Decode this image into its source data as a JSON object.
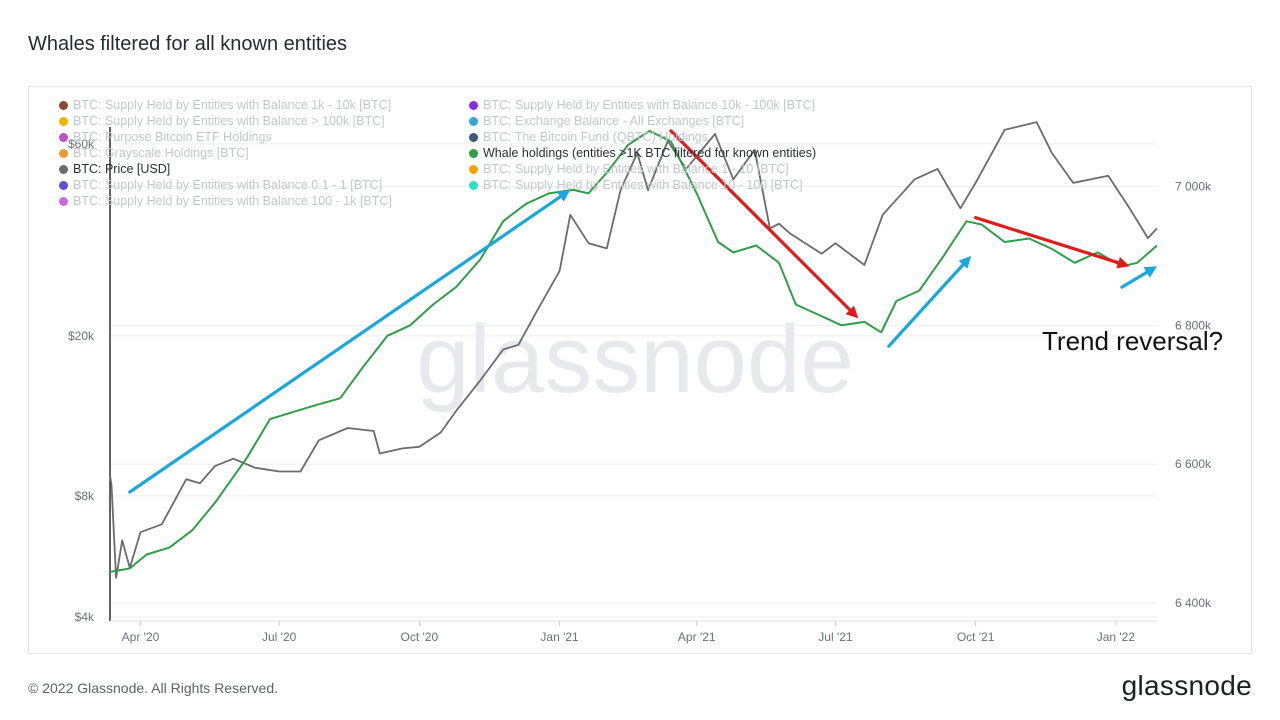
{
  "header": {
    "title": "Whales filtered for all known entities"
  },
  "footer": {
    "copyright": "© 2022 Glassnode. All Rights Reserved.",
    "logo": "glassnode"
  },
  "watermark": "glassnode",
  "annotation": {
    "text": "Trend reversal?"
  },
  "colors": {
    "price": "#6b6b6b",
    "whale": "#2e9e47",
    "arrow_blue": "#1aa6de",
    "arrow_red": "#e01b1b",
    "grid": "#eceef1",
    "axis_text": "#6b7079"
  },
  "legend": {
    "left": [
      {
        "label": "BTC: Supply Held by Entities with Balance 1k - 10k [BTC]",
        "color": "#8b4a2b",
        "active": false
      },
      {
        "label": "BTC: Supply Held by Entities with Balance > 100k [BTC]",
        "color": "#f2b300",
        "active": false
      },
      {
        "label": "BTC: Purpose Bitcoin ETF Holdings",
        "color": "#c04fc7",
        "active": false
      },
      {
        "label": "BTC: Grayscale Holdings [BTC]",
        "color": "#f0982b",
        "active": false
      },
      {
        "label": "BTC: Price [USD]",
        "color": "#6b6b6b",
        "active": true
      },
      {
        "label": "BTC: Supply Held by Entities with Balance 0.1 - 1 [BTC]",
        "color": "#5a4fdb",
        "active": false
      },
      {
        "label": "BTC: Supply Held by Entities with Balance 100 - 1k [BTC]",
        "color": "#c86ad9",
        "active": false
      }
    ],
    "right": [
      {
        "label": "BTC: Supply Held by Entities with Balance 10k - 100k [BTC]",
        "color": "#8a2be2",
        "active": false
      },
      {
        "label": "BTC: Exchange Balance - All Exchanges [BTC]",
        "color": "#33a8d8",
        "active": false
      },
      {
        "label": "BTC: The Bitcoin Fund (QBTC) Holdings",
        "color": "#3b5b7a",
        "active": false
      },
      {
        "label": "Whale holdings (entities >1K BTC filtered for known entities)",
        "color": "#2e9e47",
        "active": true
      },
      {
        "label": "BTC: Supply Held by Entities with Balance 1 - 10 [BTC]",
        "color": "#f2a400",
        "active": false
      },
      {
        "label": "BTC: Supply Held by Entities with Balance 10 - 100 [BTC]",
        "color": "#2be0c8",
        "active": false
      }
    ]
  },
  "chart_data": {
    "type": "line",
    "x_ticks": [
      {
        "date": "2020-04-01",
        "label": "Apr '20"
      },
      {
        "date": "2020-07-01",
        "label": "Jul '20"
      },
      {
        "date": "2020-10-01",
        "label": "Oct '20"
      },
      {
        "date": "2021-01-01",
        "label": "Jan '21"
      },
      {
        "date": "2021-04-01",
        "label": "Apr '21"
      },
      {
        "date": "2021-07-01",
        "label": "Jul '21"
      },
      {
        "date": "2021-10-01",
        "label": "Oct '21"
      },
      {
        "date": "2022-01-01",
        "label": "Jan '22"
      }
    ],
    "x_range": [
      "2020-03-12",
      "2022-01-28"
    ],
    "y_left": {
      "scale": "log",
      "range": [
        4000,
        70000
      ],
      "ticks": [
        {
          "value": 4000,
          "label": "$4k"
        },
        {
          "value": 8000,
          "label": "$8k"
        },
        {
          "value": 20000,
          "label": "$20k"
        },
        {
          "value": 60000,
          "label": "$60k"
        }
      ]
    },
    "y_right": {
      "scale": "linear",
      "range": [
        6380000,
        7100000
      ],
      "ticks": [
        {
          "value": 6400000,
          "label": "6 400k"
        },
        {
          "value": 6600000,
          "label": "6 600k"
        },
        {
          "value": 6800000,
          "label": "6 800k"
        },
        {
          "value": 7000000,
          "label": "7 000k"
        }
      ]
    },
    "series": [
      {
        "name": "BTC: Price [USD]",
        "axis": "left",
        "points": [
          [
            "2020-03-12",
            9000
          ],
          [
            "2020-03-13",
            8500
          ],
          [
            "2020-03-16",
            5000
          ],
          [
            "2020-03-20",
            6200
          ],
          [
            "2020-03-25",
            5300
          ],
          [
            "2020-04-01",
            6500
          ],
          [
            "2020-04-15",
            6800
          ],
          [
            "2020-05-01",
            8800
          ],
          [
            "2020-05-10",
            8600
          ],
          [
            "2020-05-20",
            9500
          ],
          [
            "2020-06-01",
            9900
          ],
          [
            "2020-06-15",
            9400
          ],
          [
            "2020-07-01",
            9200
          ],
          [
            "2020-07-15",
            9200
          ],
          [
            "2020-07-27",
            11000
          ],
          [
            "2020-08-15",
            11800
          ],
          [
            "2020-09-01",
            11600
          ],
          [
            "2020-09-05",
            10200
          ],
          [
            "2020-09-20",
            10500
          ],
          [
            "2020-10-01",
            10600
          ],
          [
            "2020-10-15",
            11500
          ],
          [
            "2020-10-25",
            13000
          ],
          [
            "2020-11-10",
            15500
          ],
          [
            "2020-11-25",
            18500
          ],
          [
            "2020-12-05",
            19000
          ],
          [
            "2020-12-17",
            23000
          ],
          [
            "2021-01-01",
            29000
          ],
          [
            "2021-01-08",
            40000
          ],
          [
            "2021-01-20",
            34000
          ],
          [
            "2021-02-01",
            33000
          ],
          [
            "2021-02-10",
            46000
          ],
          [
            "2021-02-21",
            57000
          ],
          [
            "2021-02-28",
            46000
          ],
          [
            "2021-03-13",
            61000
          ],
          [
            "2021-03-25",
            52000
          ],
          [
            "2021-04-13",
            63500
          ],
          [
            "2021-04-25",
            49000
          ],
          [
            "2021-05-09",
            58000
          ],
          [
            "2021-05-19",
            37000
          ],
          [
            "2021-05-25",
            38000
          ],
          [
            "2021-06-01",
            36000
          ],
          [
            "2021-06-22",
            32000
          ],
          [
            "2021-07-01",
            34000
          ],
          [
            "2021-07-20",
            30000
          ],
          [
            "2021-08-01",
            40000
          ],
          [
            "2021-08-22",
            49000
          ],
          [
            "2021-09-06",
            52000
          ],
          [
            "2021-09-21",
            41500
          ],
          [
            "2021-10-01",
            48000
          ],
          [
            "2021-10-20",
            65000
          ],
          [
            "2021-11-10",
            68000
          ],
          [
            "2021-11-20",
            57000
          ],
          [
            "2021-12-04",
            48000
          ],
          [
            "2021-12-27",
            50000
          ],
          [
            "2022-01-10",
            41500
          ],
          [
            "2022-01-22",
            35000
          ],
          [
            "2022-01-28",
            37000
          ]
        ]
      },
      {
        "name": "Whale holdings (entities >1K BTC filtered for known entities)",
        "axis": "right",
        "points": [
          [
            "2020-03-12",
            6445000
          ],
          [
            "2020-03-25",
            6450000
          ],
          [
            "2020-04-05",
            6470000
          ],
          [
            "2020-04-20",
            6480000
          ],
          [
            "2020-05-05",
            6505000
          ],
          [
            "2020-05-20",
            6545000
          ],
          [
            "2020-06-10",
            6610000
          ],
          [
            "2020-06-25",
            6665000
          ],
          [
            "2020-07-10",
            6675000
          ],
          [
            "2020-07-25",
            6685000
          ],
          [
            "2020-08-10",
            6695000
          ],
          [
            "2020-08-25",
            6740000
          ],
          [
            "2020-09-10",
            6785000
          ],
          [
            "2020-09-25",
            6800000
          ],
          [
            "2020-10-10",
            6830000
          ],
          [
            "2020-10-25",
            6855000
          ],
          [
            "2020-11-10",
            6895000
          ],
          [
            "2020-11-25",
            6950000
          ],
          [
            "2020-12-10",
            6975000
          ],
          [
            "2020-12-25",
            6990000
          ],
          [
            "2021-01-10",
            6995000
          ],
          [
            "2021-01-20",
            6990000
          ],
          [
            "2021-02-01",
            7020000
          ],
          [
            "2021-02-15",
            7060000
          ],
          [
            "2021-03-01",
            7080000
          ],
          [
            "2021-03-15",
            7065000
          ],
          [
            "2021-04-01",
            6990000
          ],
          [
            "2021-04-15",
            6920000
          ],
          [
            "2021-04-25",
            6905000
          ],
          [
            "2021-05-10",
            6915000
          ],
          [
            "2021-05-25",
            6890000
          ],
          [
            "2021-06-05",
            6830000
          ],
          [
            "2021-06-20",
            6815000
          ],
          [
            "2021-07-05",
            6800000
          ],
          [
            "2021-07-20",
            6805000
          ],
          [
            "2021-07-31",
            6790000
          ],
          [
            "2021-08-10",
            6835000
          ],
          [
            "2021-08-25",
            6850000
          ],
          [
            "2021-09-10",
            6900000
          ],
          [
            "2021-09-25",
            6950000
          ],
          [
            "2021-10-05",
            6945000
          ],
          [
            "2021-10-20",
            6920000
          ],
          [
            "2021-11-05",
            6925000
          ],
          [
            "2021-11-20",
            6910000
          ],
          [
            "2021-12-05",
            6890000
          ],
          [
            "2021-12-20",
            6905000
          ],
          [
            "2022-01-05",
            6885000
          ],
          [
            "2022-01-15",
            6890000
          ],
          [
            "2022-01-28",
            6915000
          ]
        ]
      }
    ],
    "annotations": [
      {
        "type": "arrow",
        "color": "blue",
        "from": {
          "x": "2020-03-25",
          "y_right": 6560000
        },
        "to": {
          "x": "2021-01-08",
          "y_right": 6995000
        }
      },
      {
        "type": "arrow",
        "color": "red",
        "from": {
          "x": "2021-03-15",
          "y_right": 7080000
        },
        "to": {
          "x": "2021-07-16",
          "y_right": 6810000
        }
      },
      {
        "type": "arrow",
        "color": "blue",
        "from": {
          "x": "2021-08-05",
          "y_right": 6770000
        },
        "to": {
          "x": "2021-09-28",
          "y_right": 6900000
        }
      },
      {
        "type": "arrow",
        "color": "red",
        "from": {
          "x": "2021-10-01",
          "y_right": 6955000
        },
        "to": {
          "x": "2022-01-10",
          "y_right": 6885000
        }
      },
      {
        "type": "arrow",
        "color": "blue",
        "from": {
          "x": "2022-01-05",
          "y_right": 6855000
        },
        "to": {
          "x": "2022-01-28",
          "y_right": 6885000
        }
      }
    ]
  }
}
